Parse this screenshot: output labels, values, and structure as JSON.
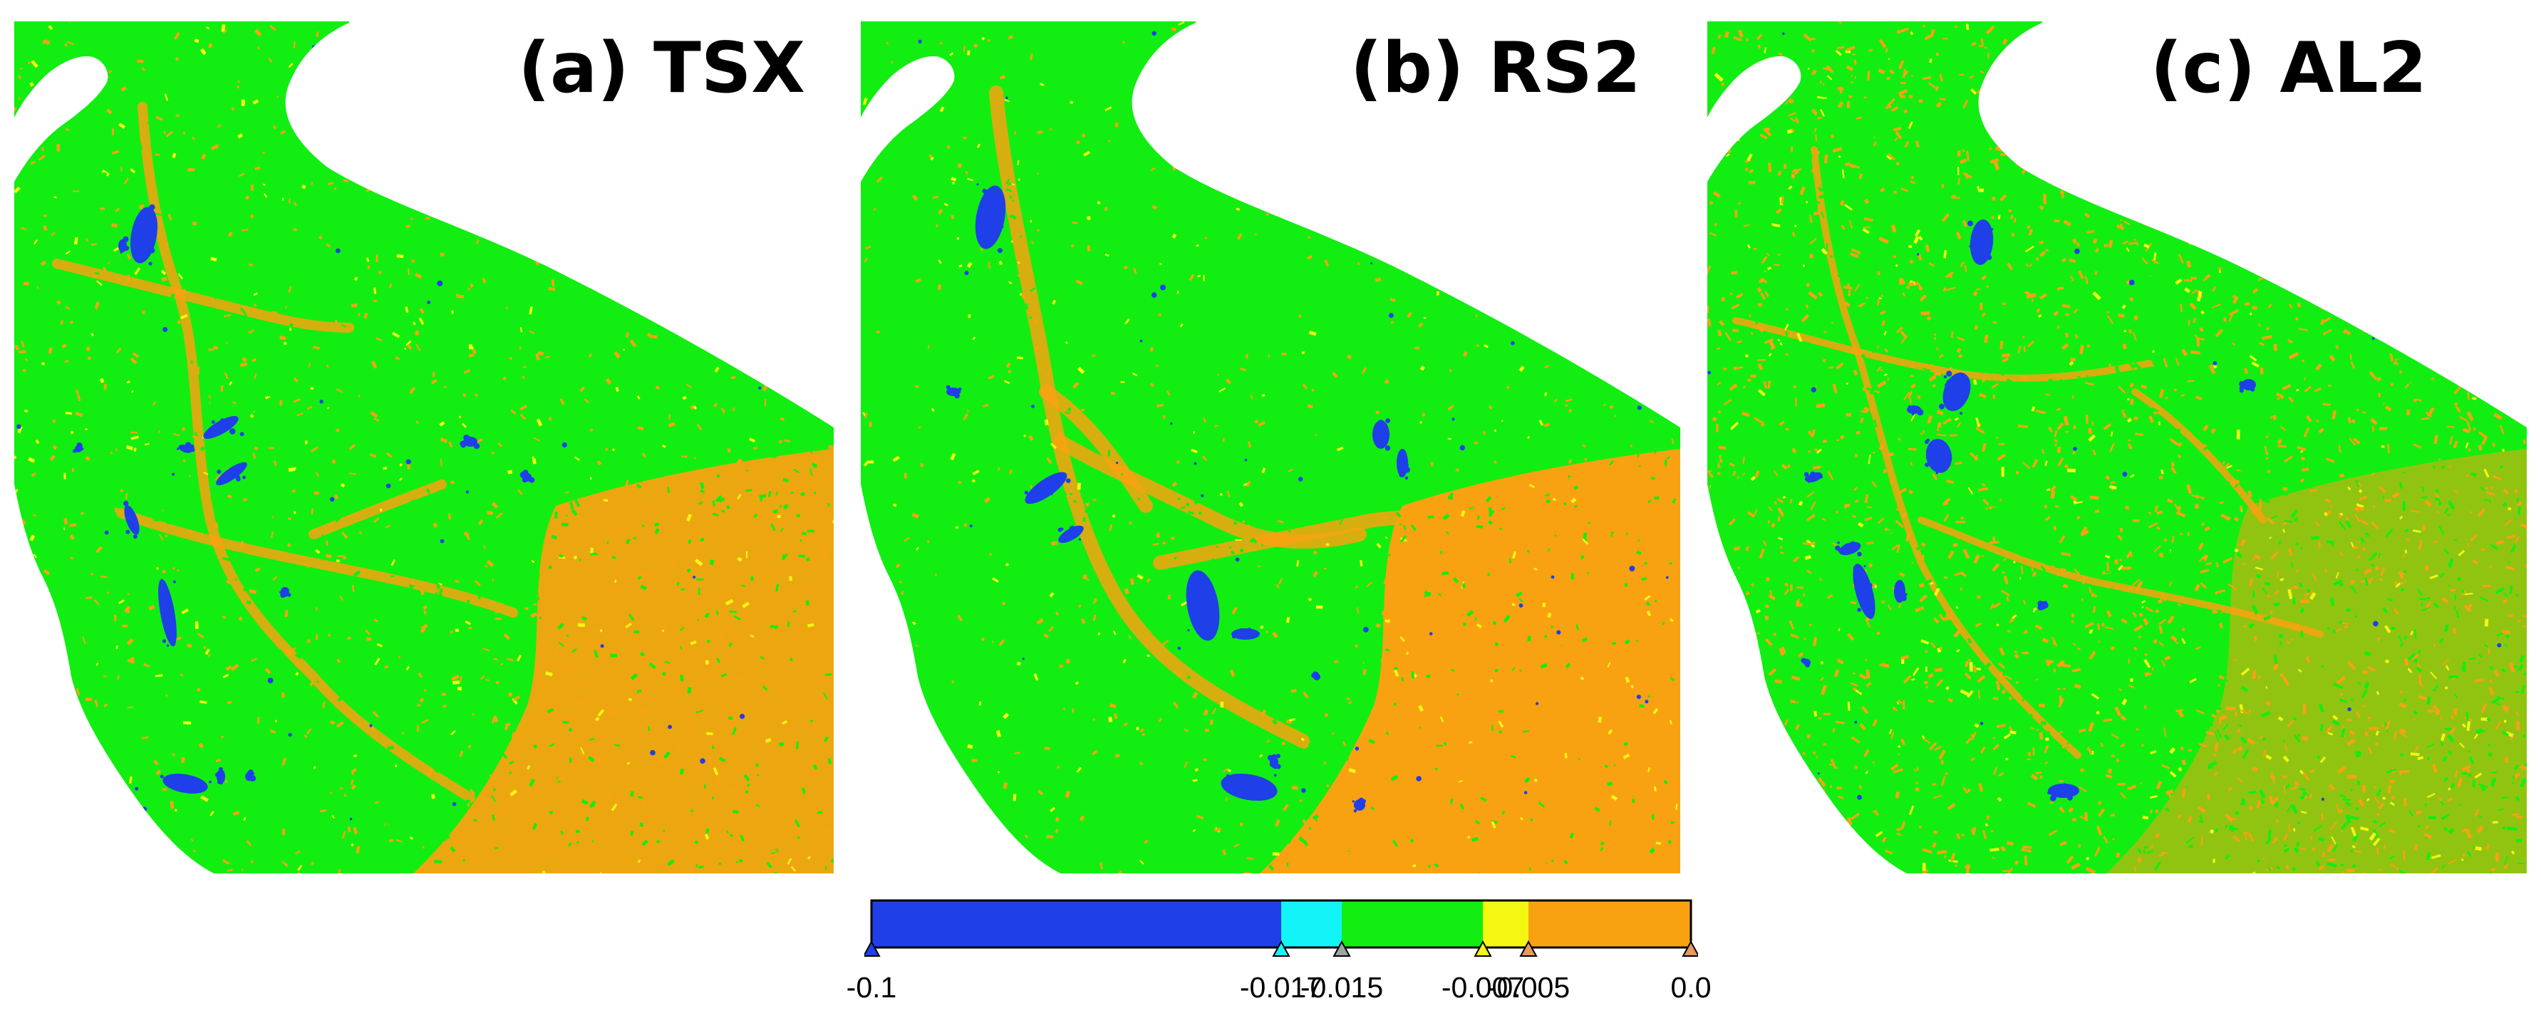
{
  "panels": [
    {
      "id": "a",
      "title": "(a) TSX"
    },
    {
      "id": "b",
      "title": "(b) RS2"
    },
    {
      "id": "c",
      "title": "(c) AL2"
    }
  ],
  "colors": {
    "deep": "#1f3fe8",
    "cyan": "#12f4f8",
    "green": "#12ee12",
    "yellow": "#f4f712",
    "orange": "#f9a211",
    "light_orange": "#f6c532",
    "marker_fill": "#9aa6a2"
  },
  "legend": {
    "min": -0.1,
    "max": 0.0,
    "classes": [
      {
        "from": -0.1,
        "to": -0.017,
        "color": "#1f3fe8"
      },
      {
        "from": -0.017,
        "to": -0.015,
        "color": "#12f4f8"
      },
      {
        "from": -0.015,
        "to": -0.007,
        "color": "#12ee12"
      },
      {
        "from": -0.007,
        "to": -0.005,
        "color": "#f4f712"
      },
      {
        "from": -0.005,
        "to": 0.0,
        "color": "#f9a211"
      }
    ],
    "ticks": [
      {
        "value": -0.1,
        "label": "-0.1",
        "marker": "#1f3fe8"
      },
      {
        "value": -0.017,
        "label": "-0.017",
        "marker": "#12f4f8"
      },
      {
        "value": -0.015,
        "label": "-0.015",
        "marker": "#9aa6a2"
      },
      {
        "value": -0.007,
        "label": "-0.007",
        "marker": "#f4f712"
      },
      {
        "value": -0.005,
        "label": "-0.005",
        "marker": "#e79a5a"
      },
      {
        "value": 0.0,
        "label": "0.0",
        "marker": "#e79a5a"
      }
    ]
  }
}
